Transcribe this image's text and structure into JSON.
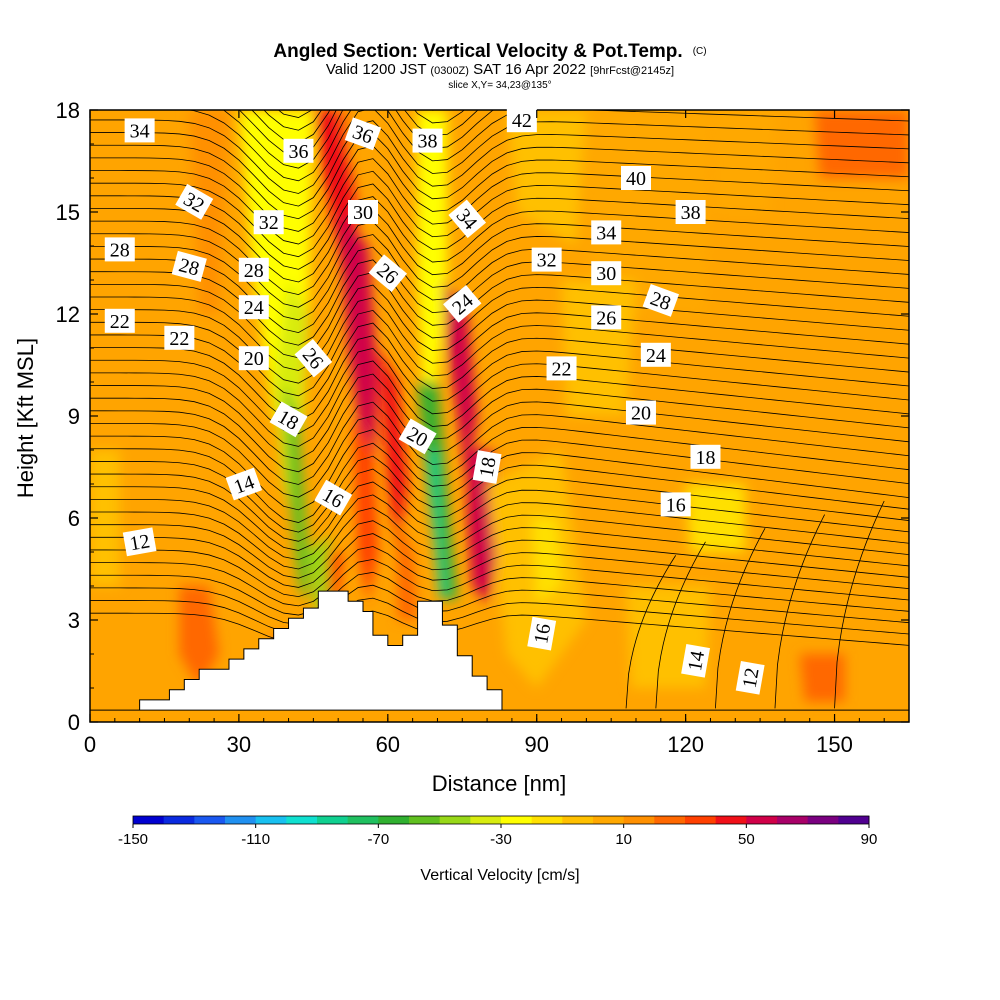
{
  "chart_data": {
    "type": "heatmap",
    "title": "Angled Section: Vertical Velocity & Pot.Temp.",
    "title_mark": "(C)",
    "subtitle_parts": [
      "Valid 1200 JST",
      "(0300Z)",
      "SAT 16 Apr 2022",
      "[9hrFcst@2145z]"
    ],
    "slice_text": "slice X,Y= 34,23@135°",
    "xlabel": "Distance [nm]",
    "ylabel": "Height [Kft MSL]",
    "xlim": [
      0,
      165
    ],
    "ylim": [
      0,
      18
    ],
    "x_ticks": [
      0,
      30,
      60,
      90,
      120,
      150
    ],
    "y_ticks": [
      0,
      3,
      6,
      9,
      12,
      15,
      18
    ],
    "colorbar": {
      "label": "Vertical Velocity [cm/s]",
      "min": -150,
      "max": 90,
      "tick_labels": [
        -150,
        -110,
        -70,
        -30,
        10,
        50,
        90
      ],
      "colors": [
        "#0000d0",
        "#0a2ae0",
        "#1a58f0",
        "#2090f0",
        "#18c0f0",
        "#10e0d0",
        "#10d090",
        "#20c060",
        "#30b030",
        "#60c020",
        "#98d818",
        "#d8ec10",
        "#ffff00",
        "#ffe000",
        "#ffc000",
        "#ffa800",
        "#ff9000",
        "#ff6800",
        "#ff4000",
        "#f01018",
        "#d00048",
        "#a80068",
        "#7a0080",
        "#500090"
      ]
    },
    "terrain": [
      [
        0,
        0.35
      ],
      [
        10,
        0.35
      ],
      [
        10,
        0.65
      ],
      [
        14,
        0.65
      ],
      [
        14,
        0.65
      ],
      [
        16,
        0.65
      ],
      [
        16,
        0.95
      ],
      [
        19,
        0.95
      ],
      [
        19,
        1.25
      ],
      [
        22,
        1.25
      ],
      [
        22,
        1.55
      ],
      [
        28,
        1.55
      ],
      [
        28,
        1.85
      ],
      [
        31,
        1.85
      ],
      [
        31,
        2.15
      ],
      [
        34,
        2.15
      ],
      [
        34,
        2.45
      ],
      [
        37,
        2.45
      ],
      [
        37,
        2.75
      ],
      [
        40,
        2.75
      ],
      [
        40,
        3.05
      ],
      [
        43,
        3.05
      ],
      [
        43,
        3.35
      ],
      [
        46,
        3.35
      ],
      [
        46,
        3.85
      ],
      [
        52,
        3.85
      ],
      [
        52,
        3.55
      ],
      [
        55,
        3.55
      ],
      [
        55,
        3.25
      ],
      [
        57,
        3.25
      ],
      [
        57,
        2.55
      ],
      [
        60,
        2.55
      ],
      [
        60,
        2.25
      ],
      [
        63,
        2.25
      ],
      [
        63,
        2.55
      ],
      [
        66,
        2.55
      ],
      [
        66,
        3.55
      ],
      [
        71,
        3.55
      ],
      [
        71,
        2.85
      ],
      [
        74,
        2.85
      ],
      [
        74,
        1.95
      ],
      [
        77,
        1.95
      ],
      [
        77,
        1.35
      ],
      [
        80,
        1.35
      ],
      [
        80,
        0.95
      ],
      [
        83,
        0.95
      ],
      [
        83,
        0.35
      ],
      [
        165,
        0.35
      ]
    ],
    "contour_labels": [
      {
        "text": "34",
        "x": 10,
        "y": 17.4,
        "angle": 0
      },
      {
        "text": "36",
        "x": 42,
        "y": 16.8,
        "angle": 0
      },
      {
        "text": "36",
        "x": 55,
        "y": 17.3,
        "angle": 20
      },
      {
        "text": "38",
        "x": 68,
        "y": 17.1,
        "angle": 0
      },
      {
        "text": "42",
        "x": 87,
        "y": 17.7,
        "angle": 0
      },
      {
        "text": "40",
        "x": 110,
        "y": 16.0,
        "angle": 0
      },
      {
        "text": "38",
        "x": 121,
        "y": 15.0,
        "angle": 0
      },
      {
        "text": "32",
        "x": 21,
        "y": 15.3,
        "angle": 30
      },
      {
        "text": "32",
        "x": 36,
        "y": 14.7,
        "angle": 0
      },
      {
        "text": "30",
        "x": 55,
        "y": 15.0,
        "angle": 0
      },
      {
        "text": "34",
        "x": 76,
        "y": 14.8,
        "angle": 50
      },
      {
        "text": "34",
        "x": 104,
        "y": 14.4,
        "angle": 0
      },
      {
        "text": "28",
        "x": 6,
        "y": 13.9,
        "angle": 0
      },
      {
        "text": "28",
        "x": 20,
        "y": 13.4,
        "angle": 15
      },
      {
        "text": "28",
        "x": 33,
        "y": 13.3,
        "angle": 0
      },
      {
        "text": "26",
        "x": 60,
        "y": 13.2,
        "angle": 40
      },
      {
        "text": "32",
        "x": 92,
        "y": 13.6,
        "angle": 0
      },
      {
        "text": "30",
        "x": 104,
        "y": 13.2,
        "angle": 0
      },
      {
        "text": "24",
        "x": 33,
        "y": 12.2,
        "angle": 0
      },
      {
        "text": "24",
        "x": 75,
        "y": 12.3,
        "angle": -40
      },
      {
        "text": "28",
        "x": 115,
        "y": 12.4,
        "angle": 20
      },
      {
        "text": "22",
        "x": 6,
        "y": 11.8,
        "angle": 0
      },
      {
        "text": "22",
        "x": 18,
        "y": 11.3,
        "angle": 0
      },
      {
        "text": "26",
        "x": 104,
        "y": 11.9,
        "angle": 0
      },
      {
        "text": "26",
        "x": 45,
        "y": 10.7,
        "angle": 50
      },
      {
        "text": "20",
        "x": 33,
        "y": 10.7,
        "angle": 0
      },
      {
        "text": "24",
        "x": 114,
        "y": 10.8,
        "angle": 0
      },
      {
        "text": "22",
        "x": 95,
        "y": 10.4,
        "angle": 0
      },
      {
        "text": "18",
        "x": 40,
        "y": 8.9,
        "angle": 30
      },
      {
        "text": "20",
        "x": 66,
        "y": 8.4,
        "angle": 30
      },
      {
        "text": "20",
        "x": 111,
        "y": 9.1,
        "angle": 0
      },
      {
        "text": "18",
        "x": 80,
        "y": 7.5,
        "angle": -80
      },
      {
        "text": "18",
        "x": 124,
        "y": 7.8,
        "angle": 0
      },
      {
        "text": "14",
        "x": 31,
        "y": 7.0,
        "angle": -20
      },
      {
        "text": "16",
        "x": 49,
        "y": 6.6,
        "angle": 30
      },
      {
        "text": "16",
        "x": 118,
        "y": 6.4,
        "angle": 0
      },
      {
        "text": "12",
        "x": 10,
        "y": 5.3,
        "angle": -10
      },
      {
        "text": "16",
        "x": 91,
        "y": 2.6,
        "angle": -80
      },
      {
        "text": "14",
        "x": 122,
        "y": 1.8,
        "angle": -80
      },
      {
        "text": "12",
        "x": 133,
        "y": 1.3,
        "angle": -80
      }
    ]
  }
}
